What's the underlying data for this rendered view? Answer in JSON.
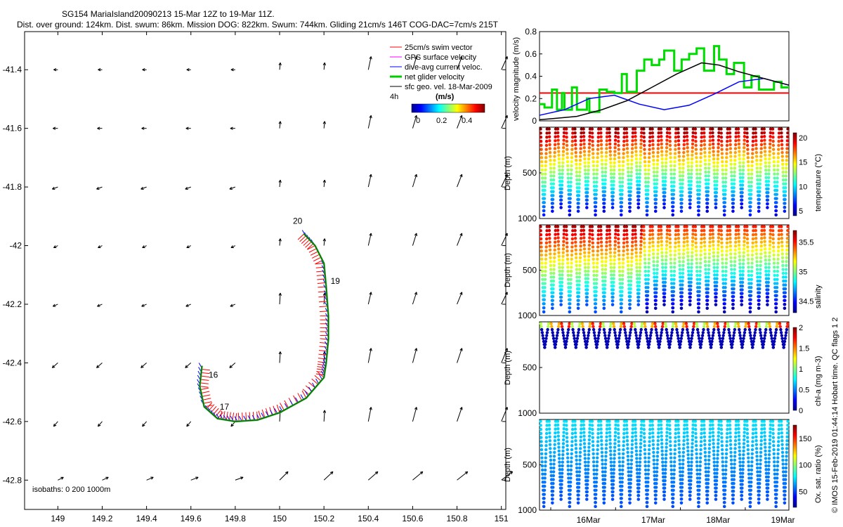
{
  "title_line1": "SG154 MariaIsland20090213 15-Mar 12Z to 19-Mar 11Z.",
  "title_line2": "Dist. over ground: 124km. Dist. swum: 86km. Mission DOG: 822km. Swum: 744km. Gliding 21cm/s 146T COG-DAC=7cm/s 215T",
  "side_text": "© IMOS 15-Feb-2019 01:44:14 Hobart time. QC flags 1  2",
  "colors": {
    "swim_vector": "#ff0000",
    "gps_surface": "#ff00ff",
    "dive_avg_current": "#0000ff",
    "net_glider": "#00cc00",
    "sfc_geo": "#000000",
    "threshold": "#ff0000",
    "speed_line": "#0000ff",
    "distance_line": "#000000"
  },
  "chart_data": [
    {
      "type": "scatter",
      "title": "",
      "xlim": [
        148.85,
        151.02
      ],
      "ylim": [
        -42.9,
        -41.27
      ],
      "x_ticks": [
        "149",
        "149.2",
        "149.4",
        "149.6",
        "149.8",
        "150",
        "150.2",
        "150.4",
        "150.6",
        "150.8",
        "151"
      ],
      "y_ticks": [
        "-41.4",
        "-41.6",
        "-41.8",
        "-42",
        "-42.2",
        "-42.4",
        "-42.6",
        "-42.8"
      ],
      "legend": [
        {
          "label": "25cm/s swim vector",
          "color": "#ff0000"
        },
        {
          "label": "GPS surface velocity",
          "color": "#ff00ff"
        },
        {
          "label": "dive-avg current veloc.",
          "color": "#0000ff"
        },
        {
          "label": "net glider velocity",
          "color": "#00cc00"
        },
        {
          "label": "sfc geo. vel. 18-Mar-2009",
          "color": "#000000"
        }
      ],
      "legend_scale_label": "4h",
      "colorbar": {
        "unit": "(m/s)",
        "ticks": [
          "0",
          "0.2",
          "0.4"
        ]
      },
      "track": [
        [
          150.11,
          -41.96
        ],
        [
          150.16,
          -42.0
        ],
        [
          150.2,
          -42.06
        ],
        [
          150.21,
          -42.14
        ],
        [
          150.22,
          -42.24
        ],
        [
          150.22,
          -42.32
        ],
        [
          150.21,
          -42.4
        ],
        [
          150.2,
          -42.45
        ],
        [
          150.12,
          -42.52
        ],
        [
          150.0,
          -42.57
        ],
        [
          149.9,
          -42.595
        ],
        [
          149.8,
          -42.6
        ],
        [
          149.72,
          -42.59
        ],
        [
          149.66,
          -42.55
        ],
        [
          149.64,
          -42.48
        ],
        [
          149.65,
          -42.41
        ]
      ],
      "day_labels": [
        {
          "label": "20",
          "x": 150.06,
          "y": -41.925
        },
        {
          "label": "19",
          "x": 150.23,
          "y": -42.13
        },
        {
          "label": "16",
          "x": 149.68,
          "y": -42.45
        },
        {
          "label": "17",
          "x": 149.73,
          "y": -42.56
        }
      ],
      "isobaths_label": "isobaths: 0   200  1000m",
      "vector_field_x": [
        149.0,
        149.2,
        149.4,
        149.6,
        149.8,
        150.0,
        150.2,
        150.4,
        150.6,
        150.8,
        151.0
      ],
      "vector_field_y": [
        -41.4,
        -41.6,
        -41.8,
        -42.0,
        -42.2,
        -42.4,
        -42.6,
        -42.8
      ]
    },
    {
      "type": "line",
      "ylabel": "velocity magnitude (m/s)",
      "ylim": [
        0,
        0.8
      ],
      "y_ticks": [
        "0",
        "0.2",
        "0.4",
        "0.6",
        "0.8"
      ],
      "threshold": 0.25,
      "series": [
        {
          "color": "#00dd00",
          "x": [
            0,
            0.02,
            0.02,
            0.05,
            0.05,
            0.07,
            0.07,
            0.09,
            0.09,
            0.1,
            0.1,
            0.13,
            0.13,
            0.15,
            0.15,
            0.19,
            0.19,
            0.2,
            0.2,
            0.24,
            0.24,
            0.27,
            0.27,
            0.3,
            0.3,
            0.33,
            0.33,
            0.35,
            0.35,
            0.39,
            0.39,
            0.42,
            0.42,
            0.45,
            0.45,
            0.48,
            0.48,
            0.5,
            0.5,
            0.54,
            0.54,
            0.57,
            0.57,
            0.6,
            0.6,
            0.63,
            0.63,
            0.66,
            0.66,
            0.7,
            0.7,
            0.72,
            0.72,
            0.75,
            0.75,
            0.78,
            0.78,
            0.82,
            0.82,
            0.85,
            0.85,
            0.88,
            0.88,
            0.91,
            0.91,
            0.94,
            0.94,
            0.97,
            0.97,
            1.0
          ],
          "y": [
            0.15,
            0.15,
            0.12,
            0.12,
            0.28,
            0.28,
            0.1,
            0.1,
            0.25,
            0.25,
            0.1,
            0.1,
            0.3,
            0.3,
            0.1,
            0.1,
            0.2,
            0.2,
            0.08,
            0.08,
            0.28,
            0.28,
            0.26,
            0.26,
            0.25,
            0.25,
            0.42,
            0.42,
            0.26,
            0.26,
            0.45,
            0.45,
            0.55,
            0.55,
            0.5,
            0.5,
            0.55,
            0.55,
            0.63,
            0.63,
            0.45,
            0.45,
            0.55,
            0.55,
            0.6,
            0.6,
            0.65,
            0.65,
            0.45,
            0.45,
            0.67,
            0.67,
            0.55,
            0.55,
            0.42,
            0.42,
            0.52,
            0.52,
            0.3,
            0.3,
            0.4,
            0.4,
            0.28,
            0.28,
            0.28,
            0.28,
            0.35,
            0.35,
            0.3,
            0.3
          ]
        },
        {
          "color": "#0000ff",
          "x": [
            0,
            0.1,
            0.2,
            0.3,
            0.4,
            0.5,
            0.6,
            0.7,
            0.8,
            0.9,
            1.0
          ],
          "y": [
            0.05,
            0.1,
            0.2,
            0.23,
            0.15,
            0.1,
            0.14,
            0.24,
            0.35,
            0.38,
            0.32
          ]
        },
        {
          "color": "#000000",
          "x": [
            0,
            0.05,
            0.15,
            0.25,
            0.35,
            0.45,
            0.55,
            0.65,
            0.72,
            0.8,
            0.9,
            1.0
          ],
          "y": [
            0.01,
            0.02,
            0.04,
            0.1,
            0.18,
            0.3,
            0.42,
            0.52,
            0.5,
            0.44,
            0.38,
            0.32
          ]
        }
      ]
    },
    {
      "type": "scatter",
      "ylabel": "Depth (m)",
      "clabel": "temperature (°C)",
      "ylim": [
        1000,
        0
      ],
      "y_ticks": [
        "500",
        "1000"
      ],
      "cticks": [
        "5",
        "10",
        "15",
        "20"
      ],
      "color_range": [
        4,
        21
      ],
      "dives": 29
    },
    {
      "type": "scatter",
      "ylabel": "Depth (m)",
      "clabel": "salinity",
      "ylim": [
        1000,
        0
      ],
      "y_ticks": [
        "500",
        "1000"
      ],
      "cticks": [
        "34.5",
        "35",
        "35.5"
      ],
      "color_range": [
        34.3,
        35.7
      ],
      "dives": 29
    },
    {
      "type": "scatter",
      "ylabel": "Depth (m)",
      "clabel": "chl-a (mg m-3)",
      "ylim": [
        1000,
        0
      ],
      "y_ticks": [
        "500",
        "1000"
      ],
      "cticks": [
        "0",
        "0.5",
        "1",
        "1.5",
        "2"
      ],
      "color_range": [
        0,
        2
      ],
      "dives": 24
    },
    {
      "type": "scatter",
      "ylabel": "Depth (m)",
      "clabel": "Ox. sat. ratio (%)",
      "ylim": [
        1000,
        0
      ],
      "y_ticks": [
        "500",
        "1000"
      ],
      "cticks": [
        "50",
        "100",
        "150"
      ],
      "color_range": [
        20,
        175
      ],
      "dives": 29
    }
  ],
  "time_axis": {
    "ticks": [
      "16Mar",
      "17Mar",
      "18Mar",
      "19Mar"
    ]
  }
}
